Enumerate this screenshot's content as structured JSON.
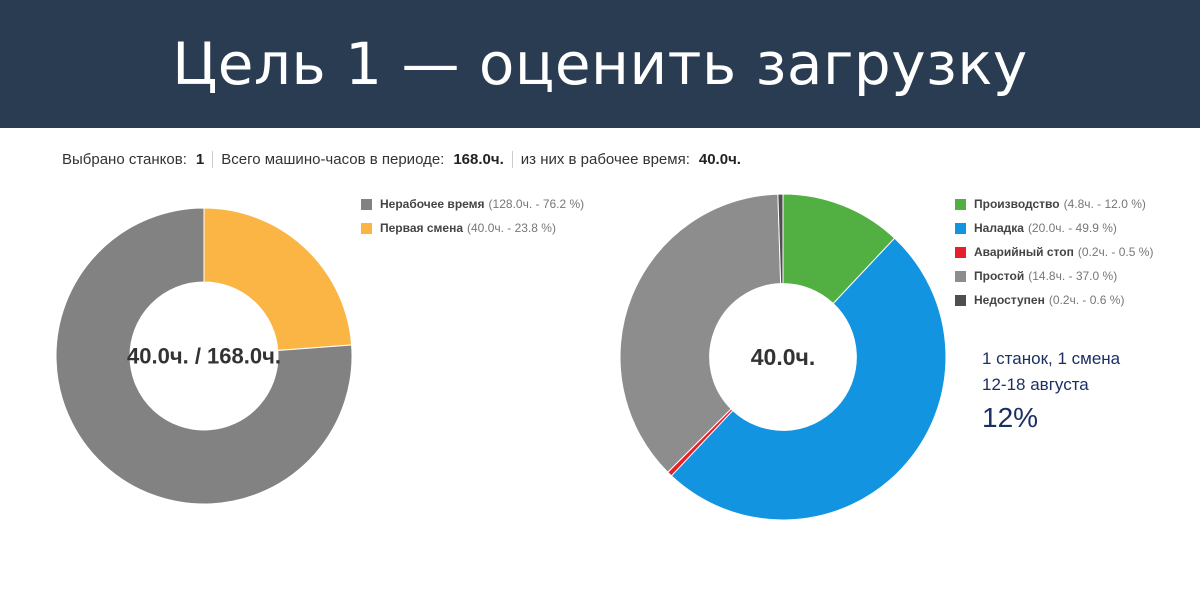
{
  "header": {
    "title": "Цель 1 — оценить загрузку"
  },
  "stats": [
    {
      "label": "Выбрано станков:",
      "value": "1"
    },
    {
      "label": "Всего машино-часов в периоде:",
      "value": "168.0ч."
    },
    {
      "label": "из них в рабочее время:",
      "value": "40.0ч."
    }
  ],
  "note": {
    "line1": "1 станок, 1 смена",
    "line2": "12-18 августа",
    "big": "12%"
  },
  "chart_data": [
    {
      "type": "pie",
      "variant": "donut",
      "center_label": "40.0ч. / 168.0ч.",
      "legend_position": "top-right",
      "slices": [
        {
          "name": "Первая смена",
          "detail": "(40.0ч. - 23.8 %)",
          "value": 40.0,
          "percent": 23.8,
          "color": "#fbb545"
        },
        {
          "name": "Нерабочее время",
          "detail": "(128.0ч. - 76.2 %)",
          "value": 128.0,
          "percent": 76.2,
          "color": "#828282"
        }
      ],
      "legend_order": [
        1,
        0
      ]
    },
    {
      "type": "pie",
      "variant": "donut",
      "center_label": "40.0ч.",
      "legend_position": "top-right",
      "slices": [
        {
          "name": "Производство",
          "detail": "(4.8ч. - 12.0 %)",
          "value": 4.8,
          "percent": 12.0,
          "color": "#52b043"
        },
        {
          "name": "Наладка",
          "detail": "(20.0ч. - 49.9 %)",
          "value": 20.0,
          "percent": 49.9,
          "color": "#1294e1"
        },
        {
          "name": "Аварийный стоп",
          "detail": "(0.2ч. - 0.5 %)",
          "value": 0.2,
          "percent": 0.5,
          "color": "#e5202b"
        },
        {
          "name": "Простой",
          "detail": "(14.8ч. - 37.0 %)",
          "value": 14.8,
          "percent": 37.0,
          "color": "#8d8d8d"
        },
        {
          "name": "Недоступен",
          "detail": "(0.2ч. - 0.6 %)",
          "value": 0.2,
          "percent": 0.6,
          "color": "#4f4f4f"
        }
      ],
      "legend_order": [
        0,
        1,
        2,
        3,
        4
      ]
    }
  ]
}
